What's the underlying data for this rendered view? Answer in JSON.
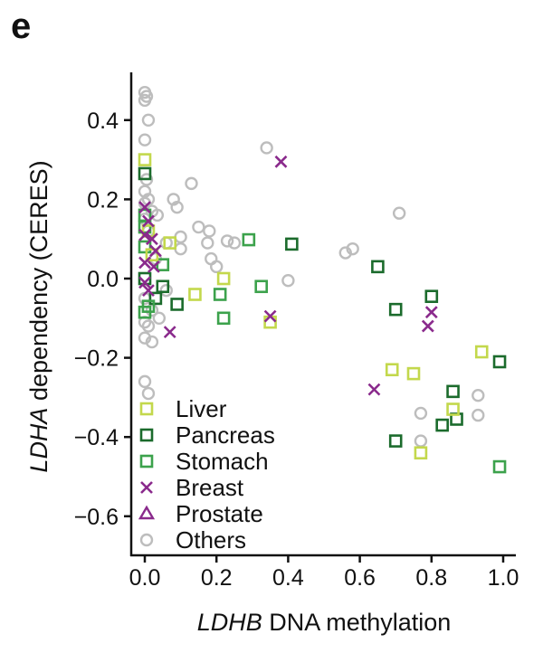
{
  "panel_label": "e",
  "chart_data": {
    "type": "scatter",
    "xlabel_italic": "LDHB",
    "xlabel_rest": " DNA methylation",
    "ylabel_italic": "LDHA",
    "ylabel_rest": " dependency (CERES)",
    "xlim": [
      -0.04,
      1.03
    ],
    "ylim": [
      -0.7,
      0.52
    ],
    "xticks": [
      0.0,
      0.2,
      0.4,
      0.6,
      0.8,
      1.0
    ],
    "xtick_labels": [
      "0.0",
      "0.2",
      "0.4",
      "0.6",
      "0.8",
      "1.0"
    ],
    "yticks": [
      0.4,
      0.2,
      0.0,
      -0.2,
      -0.4,
      -0.6
    ],
    "ytick_labels": [
      "0.4",
      "0.2",
      "0.0",
      "−0.2",
      "−0.4",
      "−0.6"
    ],
    "grid": false,
    "legend_position": "bottom-left",
    "series": [
      {
        "name": "Liver",
        "marker": "square",
        "color": "#c3d84c",
        "points": [
          [
            0.0,
            0.3
          ],
          [
            0.07,
            0.09
          ],
          [
            0.22,
            0.0
          ],
          [
            0.14,
            -0.04
          ],
          [
            0.35,
            -0.11
          ],
          [
            0.69,
            -0.23
          ],
          [
            0.75,
            -0.24
          ],
          [
            0.94,
            -0.185
          ],
          [
            0.86,
            -0.33
          ],
          [
            0.77,
            -0.44
          ],
          [
            0.01,
            0.12
          ],
          [
            0.02,
            0.06
          ]
        ]
      },
      {
        "name": "Pancreas",
        "marker": "square",
        "color": "#1b6b2c",
        "points": [
          [
            0.0,
            0.265
          ],
          [
            0.41,
            0.087
          ],
          [
            0.65,
            0.03
          ],
          [
            0.7,
            -0.078
          ],
          [
            0.8,
            -0.045
          ],
          [
            0.99,
            -0.21
          ],
          [
            0.86,
            -0.285
          ],
          [
            0.83,
            -0.37
          ],
          [
            0.87,
            -0.355
          ],
          [
            0.7,
            -0.41
          ],
          [
            0.09,
            -0.065
          ],
          [
            0.03,
            -0.05
          ],
          [
            0.05,
            -0.02
          ],
          [
            0.0,
            0.0
          ]
        ]
      },
      {
        "name": "Stomach",
        "marker": "square",
        "color": "#3ca24c",
        "points": [
          [
            0.29,
            0.098
          ],
          [
            0.05,
            0.035
          ],
          [
            0.21,
            -0.04
          ],
          [
            0.22,
            -0.1
          ],
          [
            0.325,
            -0.02
          ],
          [
            0.0,
            -0.085
          ],
          [
            0.99,
            -0.475
          ],
          [
            0.0,
            0.08
          ],
          [
            0.0,
            0.16
          ],
          [
            0.01,
            -0.07
          ],
          [
            0.0,
            0.13
          ]
        ]
      },
      {
        "name": "Breast",
        "marker": "x",
        "color": "#8a2a8c",
        "points": [
          [
            0.38,
            0.295
          ],
          [
            0.35,
            -0.095
          ],
          [
            0.07,
            -0.135
          ],
          [
            0.64,
            -0.28
          ],
          [
            0.8,
            -0.085
          ],
          [
            0.79,
            -0.12
          ],
          [
            0.0,
            0.18
          ],
          [
            0.01,
            0.145
          ],
          [
            0.02,
            0.1
          ],
          [
            0.0,
            0.04
          ],
          [
            0.025,
            0.03
          ],
          [
            0.0,
            -0.01
          ],
          [
            0.01,
            -0.03
          ],
          [
            0.03,
            0.07
          ],
          [
            0.0,
            0.11
          ]
        ]
      },
      {
        "name": "Prostate",
        "marker": "triangle",
        "color": "#8a2a8c",
        "points": []
      },
      {
        "name": "Others",
        "marker": "circle",
        "color": "#bdbdbd",
        "points": [
          [
            0.34,
            0.33
          ],
          [
            0.71,
            0.165
          ],
          [
            0.56,
            0.065
          ],
          [
            0.58,
            0.075
          ],
          [
            0.4,
            -0.005
          ],
          [
            0.77,
            -0.41
          ],
          [
            0.77,
            -0.34
          ],
          [
            0.93,
            -0.295
          ],
          [
            0.93,
            -0.345
          ],
          [
            0.13,
            0.24
          ],
          [
            0.08,
            0.2
          ],
          [
            0.09,
            0.18
          ],
          [
            0.15,
            0.13
          ],
          [
            0.1,
            0.105
          ],
          [
            0.18,
            0.12
          ],
          [
            0.175,
            0.09
          ],
          [
            0.23,
            0.095
          ],
          [
            0.25,
            0.09
          ],
          [
            0.185,
            0.05
          ],
          [
            0.2,
            0.03
          ],
          [
            0.035,
            0.16
          ],
          [
            0.06,
            0.09
          ],
          [
            0.1,
            0.075
          ],
          [
            0.0,
            0.47
          ],
          [
            0.005,
            0.46
          ],
          [
            0.0,
            0.45
          ],
          [
            0.01,
            0.4
          ],
          [
            0.0,
            0.35
          ],
          [
            0.005,
            0.25
          ],
          [
            0.0,
            0.22
          ],
          [
            0.01,
            0.2
          ],
          [
            0.0,
            0.19
          ],
          [
            0.02,
            0.17
          ],
          [
            0.0,
            0.15
          ],
          [
            0.01,
            0.12
          ],
          [
            0.03,
            0.05
          ],
          [
            0.0,
            -0.05
          ],
          [
            0.02,
            -0.08
          ],
          [
            0.01,
            -0.12
          ],
          [
            0.0,
            -0.15
          ],
          [
            0.02,
            -0.16
          ],
          [
            0.0,
            -0.26
          ],
          [
            0.01,
            -0.29
          ],
          [
            0.04,
            -0.1
          ],
          [
            0.06,
            -0.03
          ],
          [
            0.0,
            -0.11
          ]
        ]
      }
    ]
  }
}
